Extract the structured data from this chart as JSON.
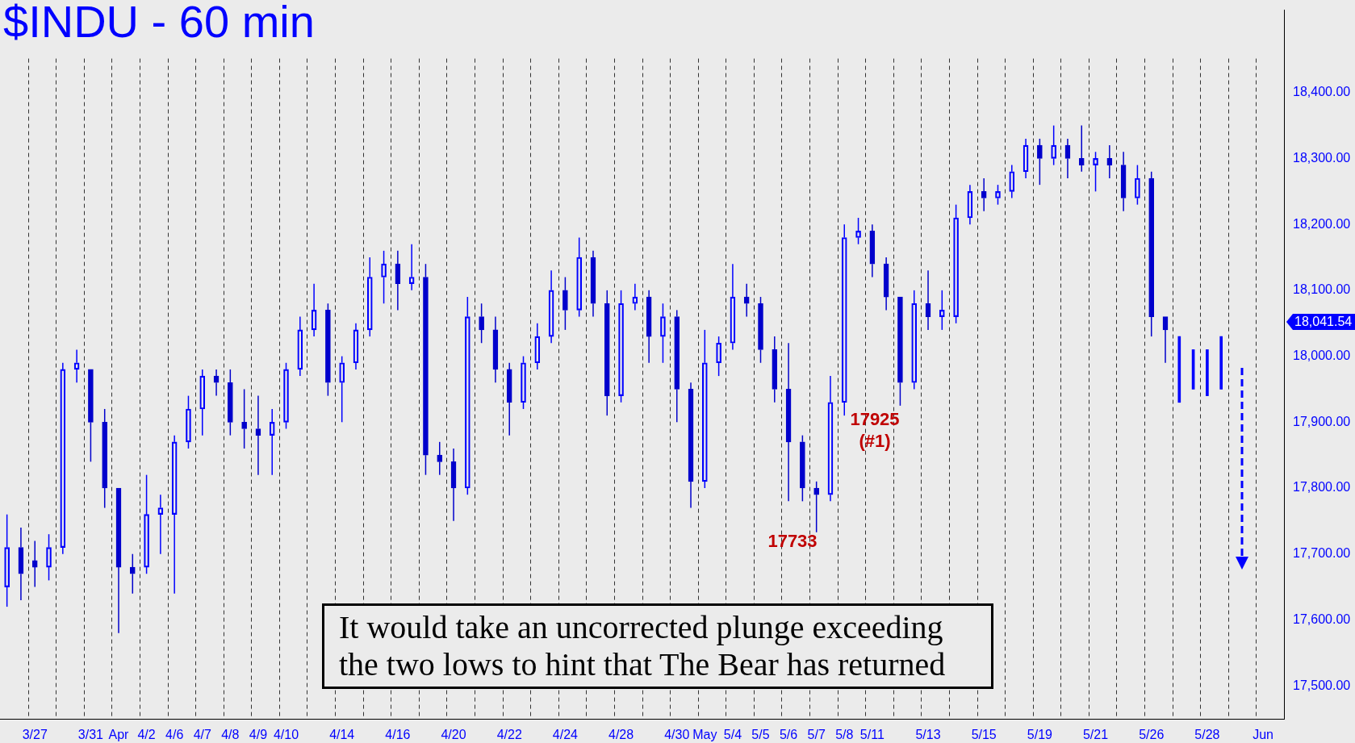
{
  "chart_data": {
    "type": "candlestick",
    "title": "$INDU - 60 min",
    "categories": [
      null,
      null,
      "3/27",
      null,
      null,
      null,
      "3/31",
      null,
      "Apr",
      null,
      "4/2",
      null,
      "4/6",
      null,
      "4/7",
      null,
      "4/8",
      null,
      "4/9",
      null,
      "4/10",
      null,
      null,
      null,
      "4/14",
      null,
      null,
      null,
      "4/16",
      null,
      null,
      null,
      "4/20",
      null,
      null,
      null,
      "4/22",
      null,
      null,
      null,
      "4/24",
      null,
      null,
      null,
      "4/28",
      null,
      null,
      null,
      "4/30",
      null,
      "May",
      null,
      "5/4",
      null,
      "5/5",
      null,
      "5/6",
      null,
      "5/7",
      null,
      "5/8",
      null,
      "5/11",
      null,
      null,
      null,
      "5/13",
      null,
      null,
      null,
      "5/15",
      null,
      null,
      null,
      "5/19",
      null,
      null,
      null,
      "5/21",
      null,
      null,
      null,
      "5/26",
      null,
      null,
      null,
      "5/28",
      null,
      null,
      null,
      "Jun",
      null
    ],
    "series": [
      {
        "color": "#0000ff",
        "colors": [
          "#0000ff",
          "#0000cc",
          "#0000cc",
          "#0000ff",
          "#0000ff",
          "#0000ff",
          "#0000cc",
          "#0000cc",
          "#0000cc",
          "#0000cc",
          "#0000ff",
          "#0000ff",
          "#0000ff",
          "#0000ff",
          "#0000ff",
          "#0000cc",
          "#0000cc",
          "#0000cc",
          "#0000cc",
          "#0000ff",
          "#0000ff",
          "#0000ff",
          "#0000ff",
          "#0000cc",
          "#0000ff",
          "#0000ff",
          "#0000ff",
          "#0000ff",
          "#0000cc",
          "#0000ff",
          "#0000cc",
          "#0000cc",
          "#0000cc",
          "#0000ff",
          "#0000cc",
          "#0000cc",
          "#0000cc",
          "#0000ff",
          "#0000ff",
          "#0000ff",
          "#0000cc",
          "#0000ff",
          "#0000cc",
          "#0000cc",
          "#0000ff",
          "#0000ff",
          "#0000cc",
          "#0000ff",
          "#0000cc",
          "#0000cc",
          "#0000ff",
          "#0000ff",
          "#0000ff",
          "#0000cc",
          "#0000cc",
          "#0000cc",
          "#0000cc",
          "#0000cc",
          "#0000cc",
          "#0000ff",
          "#0000ff",
          "#0000ff",
          "#0000cc",
          "#0000cc",
          "#0000cc",
          "#0000ff",
          "#0000cc",
          "#0000ff",
          "#0000ff",
          "#0000ff",
          "#0000cc",
          "#0000ff",
          "#0000ff",
          "#0000ff",
          "#0000cc",
          "#0000ff",
          "#0000cc",
          "#0000cc",
          "#0000ff",
          "#0000cc",
          "#0000cc",
          "#0000ff",
          "#0000cc",
          "#0000cc",
          null,
          null,
          null,
          null,
          null,
          null,
          null,
          null
        ],
        "ohlc": [
          [
            17650,
            17760,
            17620,
            17710
          ],
          [
            17710,
            17740,
            17630,
            17670
          ],
          [
            17690,
            17720,
            17650,
            17680
          ],
          [
            17680,
            17730,
            17660,
            17710
          ],
          [
            17710,
            17990,
            17700,
            17980
          ],
          [
            17980,
            18010,
            17960,
            17990
          ],
          [
            17980,
            17980,
            17840,
            17900
          ],
          [
            17900,
            17920,
            17770,
            17800
          ],
          [
            17800,
            17800,
            17580,
            17680
          ],
          [
            17680,
            17700,
            17640,
            17670
          ],
          [
            17680,
            17820,
            17670,
            17760
          ],
          [
            17760,
            17790,
            17700,
            17770
          ],
          [
            17760,
            17880,
            17640,
            17870
          ],
          [
            17870,
            17940,
            17860,
            17920
          ],
          [
            17920,
            17980,
            17880,
            17970
          ],
          [
            17970,
            17980,
            17940,
            17960
          ],
          [
            17960,
            17980,
            17880,
            17900
          ],
          [
            17900,
            17950,
            17860,
            17890
          ],
          [
            17890,
            17940,
            17820,
            17880
          ],
          [
            17880,
            17920,
            17820,
            17900
          ],
          [
            17900,
            17990,
            17890,
            17980
          ],
          [
            17980,
            18060,
            17970,
            18040
          ],
          [
            18040,
            18110,
            18030,
            18070
          ],
          [
            18070,
            18080,
            17940,
            17960
          ],
          [
            17960,
            18000,
            17900,
            17990
          ],
          [
            17990,
            18050,
            17980,
            18040
          ],
          [
            18040,
            18150,
            18030,
            18120
          ],
          [
            18120,
            18160,
            18080,
            18140
          ],
          [
            18140,
            18160,
            18070,
            18110
          ],
          [
            18110,
            18170,
            18100,
            18120
          ],
          [
            18120,
            18140,
            17820,
            17850
          ],
          [
            17850,
            17870,
            17820,
            17840
          ],
          [
            17840,
            17860,
            17750,
            17800
          ],
          [
            17800,
            18090,
            17790,
            18060
          ],
          [
            18060,
            18080,
            18020,
            18040
          ],
          [
            18040,
            18060,
            17960,
            17980
          ],
          [
            17980,
            17990,
            17880,
            17930
          ],
          [
            17930,
            18000,
            17920,
            17990
          ],
          [
            17990,
            18050,
            17980,
            18030
          ],
          [
            18030,
            18130,
            18020,
            18100
          ],
          [
            18100,
            18120,
            18040,
            18070
          ],
          [
            18070,
            18180,
            18060,
            18150
          ],
          [
            18150,
            18160,
            18060,
            18080
          ],
          [
            18080,
            18100,
            17910,
            17940
          ],
          [
            17940,
            18100,
            17930,
            18080
          ],
          [
            18080,
            18110,
            18070,
            18090
          ],
          [
            18090,
            18100,
            17990,
            18030
          ],
          [
            18030,
            18080,
            17990,
            18060
          ],
          [
            18060,
            18070,
            17900,
            17950
          ],
          [
            17950,
            17960,
            17770,
            17810
          ],
          [
            17810,
            18040,
            17800,
            17990
          ],
          [
            17990,
            18030,
            17970,
            18020
          ],
          [
            18020,
            18140,
            18010,
            18090
          ],
          [
            18090,
            18110,
            18060,
            18080
          ],
          [
            18080,
            18090,
            17990,
            18010
          ],
          [
            18010,
            18030,
            17930,
            17950
          ],
          [
            17950,
            18020,
            17780,
            17870
          ],
          [
            17870,
            17880,
            17780,
            17800
          ],
          [
            17800,
            17810,
            17733,
            17790
          ],
          [
            17790,
            17970,
            17780,
            17930
          ],
          [
            17930,
            18200,
            17910,
            18180
          ],
          [
            18180,
            18210,
            18170,
            18190
          ],
          [
            18190,
            18200,
            18120,
            18140
          ],
          [
            18140,
            18150,
            18070,
            18090
          ],
          [
            18090,
            18090,
            17925,
            17960
          ],
          [
            17960,
            18100,
            17950,
            18080
          ],
          [
            18080,
            18130,
            18040,
            18060
          ],
          [
            18060,
            18100,
            18040,
            18070
          ],
          [
            18060,
            18230,
            18050,
            18210
          ],
          [
            18210,
            18260,
            18200,
            18250
          ],
          [
            18250,
            18270,
            18220,
            18240
          ],
          [
            18240,
            18260,
            18230,
            18250
          ],
          [
            18250,
            18290,
            18240,
            18280
          ],
          [
            18280,
            18330,
            18270,
            18320
          ],
          [
            18320,
            18330,
            18260,
            18300
          ],
          [
            18300,
            18350,
            18290,
            18320
          ],
          [
            18320,
            18330,
            18270,
            18300
          ],
          [
            18300,
            18350,
            18280,
            18290
          ],
          [
            18290,
            18310,
            18250,
            18300
          ],
          [
            18300,
            18320,
            18270,
            18290
          ],
          [
            18290,
            18310,
            18220,
            18240
          ],
          [
            18240,
            18290,
            18230,
            18270
          ],
          [
            18270,
            18280,
            18030,
            18060
          ],
          [
            18060,
            18060,
            17990,
            18040
          ],
          null,
          null,
          null,
          null,
          null,
          null,
          null,
          null
        ]
      },
      {
        "type": "bar",
        "color": "#0000ff",
        "values": [
          null,
          null,
          null,
          null,
          null,
          null,
          null,
          null,
          null,
          null,
          null,
          null,
          null,
          null,
          null,
          null,
          null,
          null,
          null,
          null,
          null,
          null,
          null,
          null,
          null,
          null,
          null,
          null,
          null,
          null,
          null,
          null,
          null,
          null,
          null,
          null,
          null,
          null,
          null,
          null,
          null,
          null,
          null,
          null,
          null,
          null,
          null,
          null,
          null,
          null,
          null,
          null,
          null,
          null,
          null,
          null,
          null,
          null,
          null,
          null,
          null,
          null,
          null,
          null,
          null,
          null,
          null,
          null,
          null,
          null,
          null,
          null,
          null,
          null,
          null,
          null,
          null,
          null,
          null,
          null,
          null,
          null,
          null,
          null,
          100,
          60,
          70,
          80,
          null,
          null,
          null,
          null
        ],
        "base": [
          null,
          null,
          null,
          null,
          null,
          null,
          null,
          null,
          null,
          null,
          null,
          null,
          null,
          null,
          null,
          null,
          null,
          null,
          null,
          null,
          null,
          null,
          null,
          null,
          null,
          null,
          null,
          null,
          null,
          null,
          null,
          null,
          null,
          null,
          null,
          null,
          null,
          null,
          null,
          null,
          null,
          null,
          null,
          null,
          null,
          null,
          null,
          null,
          null,
          null,
          null,
          null,
          null,
          null,
          null,
          null,
          null,
          null,
          null,
          null,
          null,
          null,
          null,
          null,
          null,
          null,
          null,
          null,
          null,
          null,
          null,
          null,
          null,
          null,
          null,
          null,
          null,
          null,
          null,
          null,
          null,
          null,
          null,
          null,
          17930,
          17950,
          17940,
          17950,
          null,
          null,
          null,
          null
        ]
      }
    ],
    "ylim": [
      17450,
      18525
    ],
    "yticks": [
      {
        "value": 17500,
        "label": "17,500.00"
      },
      {
        "value": 17600,
        "label": "17,600.00"
      },
      {
        "value": 17700,
        "label": "17,700.00"
      },
      {
        "value": 17800,
        "label": "17,800.00"
      },
      {
        "value": 17900,
        "label": "17,900.00"
      },
      {
        "value": 18000,
        "label": "18,000.00"
      },
      {
        "value": 18100,
        "label": "18,100.00"
      },
      {
        "value": 18200,
        "label": "18,200.00"
      },
      {
        "value": 18300,
        "label": "18,300.00"
      },
      {
        "value": 18400,
        "label": "18,400.00"
      }
    ],
    "grid": "x",
    "annotations": [
      "17733",
      "17925\n(#1)",
      "18,041.54",
      "It would take an uncorrected plunge exceeding the two lows to hint that The Bear has returned"
    ]
  }
}
